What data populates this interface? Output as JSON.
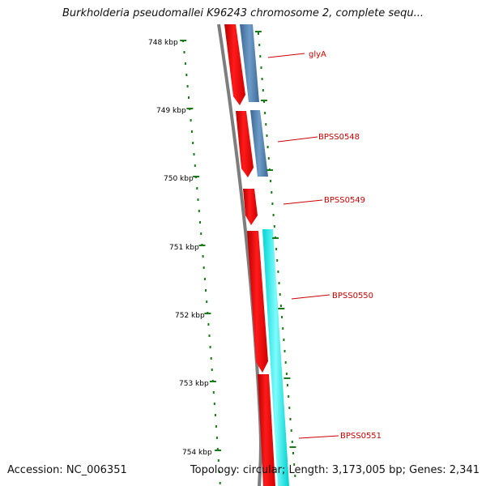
{
  "title": "Burkholderia pseudomallei K96243 chromosome 2, complete sequ...",
  "footer": {
    "accession": "Accession: NC_006351",
    "topology": "Topology: circular; Length: 3,173,005 bp; Genes: 2,341"
  },
  "colors": {
    "backbone": "#808080",
    "tick": "#1a7a1a",
    "tick_label": "#000000",
    "gene_forward_red": "#ff0000",
    "gene_blue": "#4a78a8",
    "gene_cyan": "#00e5e5",
    "gene_label": "#cc0000",
    "leader_line": "#cc0000"
  },
  "scale": {
    "unit": "kbp",
    "labels": [
      "748 kbp",
      "749 kbp",
      "750 kbp",
      "751 kbp",
      "752 kbp",
      "753 kbp",
      "754 kbp"
    ]
  },
  "genes": [
    {
      "name": "glyA"
    },
    {
      "name": "BPSS0548"
    },
    {
      "name": "BPSS0549"
    },
    {
      "name": "BPSS0550"
    },
    {
      "name": "BPSS0551"
    }
  ]
}
